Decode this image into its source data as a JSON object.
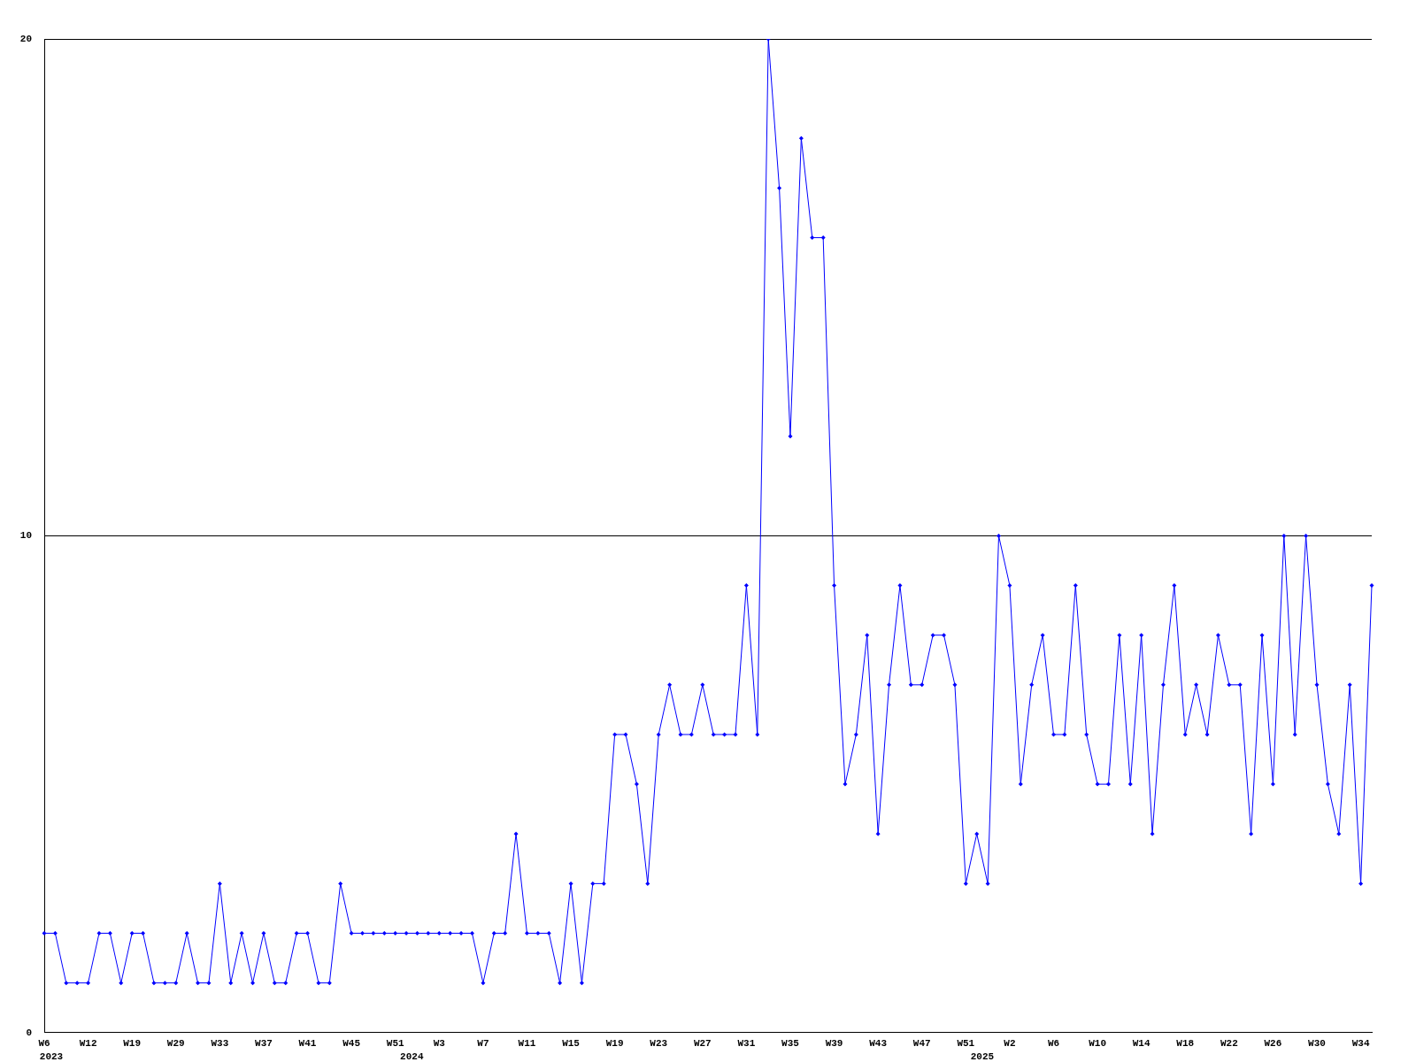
{
  "chart_data": {
    "type": "line",
    "categories": [
      "W6",
      null,
      null,
      null,
      "W12",
      null,
      null,
      null,
      "W19",
      null,
      null,
      null,
      "W29",
      null,
      null,
      null,
      "W33",
      null,
      null,
      null,
      "W37",
      null,
      null,
      null,
      "W41",
      null,
      null,
      null,
      "W45",
      null,
      null,
      null,
      "W51",
      null,
      null,
      null,
      "W3",
      null,
      null,
      null,
      "W7",
      null,
      null,
      null,
      "W11",
      null,
      null,
      null,
      "W15",
      null,
      null,
      null,
      "W19",
      null,
      null,
      null,
      "W23",
      null,
      null,
      null,
      "W27",
      null,
      null,
      null,
      "W31",
      null,
      null,
      null,
      "W35",
      null,
      null,
      null,
      "W39",
      null,
      null,
      null,
      "W43",
      null,
      null,
      null,
      "W47",
      null,
      null,
      null,
      "W51",
      null,
      null,
      null,
      "W2",
      null,
      null,
      null,
      "W6",
      null,
      null,
      null,
      "W10",
      null,
      null,
      null,
      "W14",
      null,
      null,
      null,
      "W18",
      null,
      null,
      null,
      "W22",
      null,
      null,
      null,
      "W26",
      null,
      null,
      null,
      "W30",
      null,
      null,
      null,
      "W34",
      null
    ],
    "series": [
      {
        "color": "#0000ff",
        "values": [
          2,
          2,
          1,
          1,
          1,
          2,
          2,
          1,
          2,
          2,
          1,
          1,
          1,
          2,
          1,
          1,
          3,
          1,
          2,
          1,
          2,
          1,
          1,
          2,
          2,
          1,
          1,
          3,
          2,
          2,
          2,
          2,
          2,
          2,
          2,
          2,
          2,
          2,
          2,
          2,
          1,
          2,
          2,
          4,
          2,
          2,
          2,
          1,
          3,
          1,
          3,
          3,
          6,
          6,
          5,
          3,
          6,
          7,
          6,
          6,
          7,
          6,
          6,
          6,
          9,
          6,
          20,
          17,
          12,
          18,
          16,
          16,
          9,
          5,
          6,
          8,
          4,
          7,
          9,
          7,
          7,
          8,
          8,
          7,
          3,
          4,
          3,
          10,
          9,
          5,
          7,
          8,
          6,
          6,
          9,
          6,
          5,
          5,
          8,
          5,
          8,
          4,
          7,
          9,
          6,
          7,
          6,
          8,
          7,
          7,
          4,
          8,
          5,
          10,
          6,
          10,
          7,
          5,
          4,
          7,
          3,
          9
        ]
      }
    ],
    "ylim": [
      0,
      20
    ],
    "yticks": [
      0,
      10,
      20
    ],
    "grid": "y",
    "marker": "diamond",
    "line_style": "solid",
    "legend": false,
    "annotations": [
      "2023",
      "2024",
      "2025"
    ]
  }
}
